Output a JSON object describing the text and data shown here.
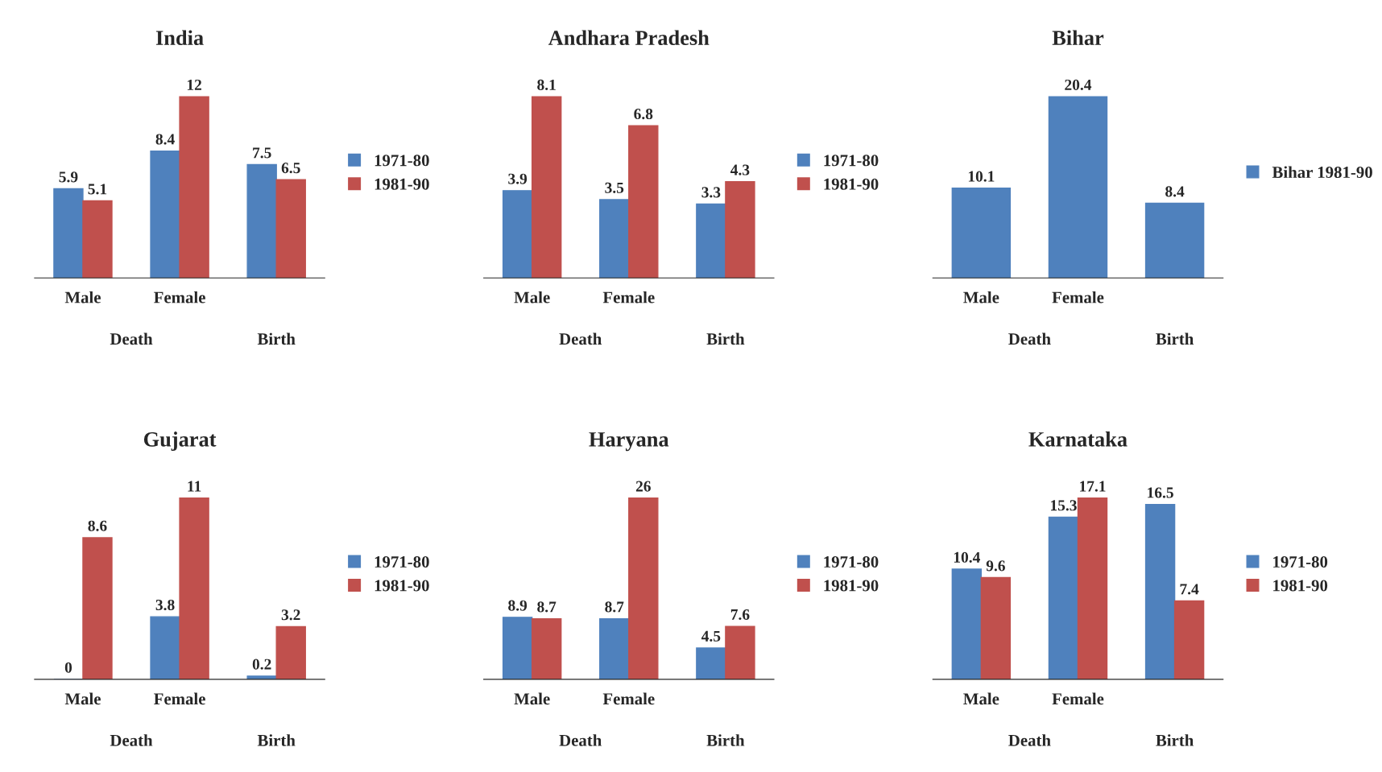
{
  "chart_data": [
    {
      "type": "bar",
      "title": "India",
      "categories": [
        "Male",
        "Female",
        null
      ],
      "annotations": [
        "Death",
        "Birth"
      ],
      "data_labels": true,
      "legend": "right",
      "series": [
        {
          "name": "1971-80",
          "color": "#4f81bd",
          "values": [
            5.9,
            8.4,
            7.5
          ]
        },
        {
          "name": "1981-90",
          "color": "#c0504d",
          "values": [
            5.1,
            12,
            6.5
          ]
        }
      ]
    },
    {
      "type": "bar",
      "title": "Andhara Pradesh",
      "categories": [
        "Male",
        "Female",
        null
      ],
      "annotations": [
        "Death",
        "Birth"
      ],
      "data_labels": true,
      "legend": "right",
      "series": [
        {
          "name": "1971-80",
          "color": "#4f81bd",
          "values": [
            3.9,
            3.5,
            3.3
          ]
        },
        {
          "name": "1981-90",
          "color": "#c0504d",
          "values": [
            8.1,
            6.8,
            4.3
          ]
        }
      ]
    },
    {
      "type": "bar",
      "title": "Bihar",
      "categories": [
        "Male",
        "Female",
        null
      ],
      "annotations": [
        "Death",
        "Birth"
      ],
      "data_labels": true,
      "legend": "right",
      "series": [
        {
          "name": "Bihar 1981-90",
          "color": "#4f81bd",
          "values": [
            10.1,
            20.4,
            8.4
          ]
        }
      ]
    },
    {
      "type": "bar",
      "title": "Gujarat",
      "categories": [
        "Male",
        "Female",
        null
      ],
      "annotations": [
        "Death",
        "Birth"
      ],
      "data_labels": true,
      "legend": "right",
      "series": [
        {
          "name": "1971-80",
          "color": "#4f81bd",
          "values": [
            0,
            3.8,
            0.2
          ]
        },
        {
          "name": "1981-90",
          "color": "#c0504d",
          "values": [
            8.6,
            11,
            3.2
          ]
        }
      ]
    },
    {
      "type": "bar",
      "title": "Haryana",
      "categories": [
        "Male",
        "Female",
        null
      ],
      "annotations": [
        "Death",
        "Birth"
      ],
      "data_labels": true,
      "legend": "right",
      "series": [
        {
          "name": "1971-80",
          "color": "#4f81bd",
          "values": [
            8.9,
            8.7,
            4.5
          ]
        },
        {
          "name": "1981-90",
          "color": "#c0504d",
          "values": [
            8.7,
            26,
            7.6
          ]
        }
      ]
    },
    {
      "type": "bar",
      "title": "Karnataka",
      "categories": [
        "Male",
        "Female",
        null
      ],
      "annotations": [
        "Death",
        "Birth"
      ],
      "data_labels": true,
      "legend": "right",
      "series": [
        {
          "name": "1971-80",
          "color": "#4f81bd",
          "values": [
            10.4,
            15.3,
            16.5
          ]
        },
        {
          "name": "1981-90",
          "color": "#c0504d",
          "values": [
            9.6,
            17.1,
            7.4
          ]
        }
      ]
    }
  ]
}
